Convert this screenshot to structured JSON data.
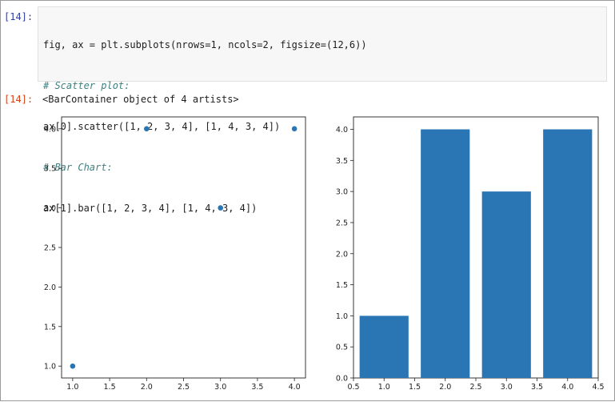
{
  "cell": {
    "input_prompt": "[14]:",
    "output_prompt": "[14]:",
    "code_lines": [
      "fig, ax = plt.subplots(nrows=1, ncols=2, figsize=(12,6))",
      "# Scatter plot:",
      "ax[0].scatter([1, 2, 3, 4], [1, 4, 3, 4])",
      "# Bar Chart:",
      "ax[1].bar([1, 2, 3, 4], [1, 4, 3, 4])"
    ],
    "output_text": "<BarContainer object of 4 artists>"
  },
  "colors": {
    "series": "#2a75b3",
    "input_prompt": "#303f9f",
    "output_prompt": "#d84315"
  },
  "chart_data": [
    {
      "type": "scatter",
      "x": [
        1,
        2,
        3,
        4
      ],
      "y": [
        1,
        4,
        3,
        4
      ],
      "xlim": [
        0.85,
        4.15
      ],
      "ylim": [
        0.85,
        4.15
      ],
      "xticks": [
        "1.0",
        "1.5",
        "2.0",
        "2.5",
        "3.0",
        "3.5",
        "4.0"
      ],
      "yticks": [
        "1.0",
        "1.5",
        "2.0",
        "2.5",
        "3.0",
        "3.5",
        "4.0"
      ],
      "grid": false
    },
    {
      "type": "bar",
      "categories": [
        1,
        2,
        3,
        4
      ],
      "values": [
        1,
        4,
        3,
        4
      ],
      "bar_width": 0.8,
      "xlim": [
        0.5,
        4.5
      ],
      "ylim": [
        0,
        4.2
      ],
      "xticks": [
        "0.5",
        "1.0",
        "1.5",
        "2.0",
        "2.5",
        "3.0",
        "3.5",
        "4.0",
        "4.5"
      ],
      "yticks": [
        "0.0",
        "0.5",
        "1.0",
        "1.5",
        "2.0",
        "2.5",
        "3.0",
        "3.5",
        "4.0"
      ],
      "grid": false
    }
  ]
}
